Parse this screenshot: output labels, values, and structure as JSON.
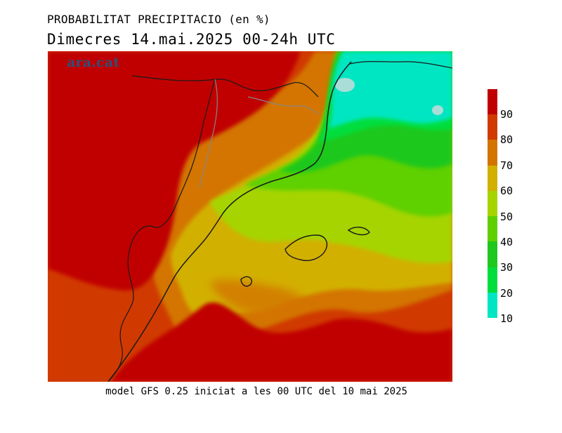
{
  "title": "PROBABILITAT PRECIPITACIO (en %)",
  "subtitle": "Dimecres  14.mai.2025 00-24h UTC",
  "footer": "model GFS 0.25 iniciat a les 00 UTC del 10 mai 2025",
  "watermark": "ara.cat",
  "legend": {
    "ticks": [
      "90",
      "80",
      "70",
      "60",
      "50",
      "40",
      "30",
      "20",
      "10"
    ],
    "bands": [
      {
        "range": "90-100",
        "color": "#c00000"
      },
      {
        "range": "80-90",
        "color": "#d03a00"
      },
      {
        "range": "70-80",
        "color": "#d37400"
      },
      {
        "range": "60-70",
        "color": "#d2b000"
      },
      {
        "range": "50-60",
        "color": "#a6d400"
      },
      {
        "range": "40-50",
        "color": "#5ed000"
      },
      {
        "range": "30-40",
        "color": "#1ec81e"
      },
      {
        "range": "20-30",
        "color": "#00de3e"
      },
      {
        "range": "10-20",
        "color": "#00e6c2"
      }
    ]
  },
  "map_icons": [
    "coastline",
    "borders"
  ]
}
